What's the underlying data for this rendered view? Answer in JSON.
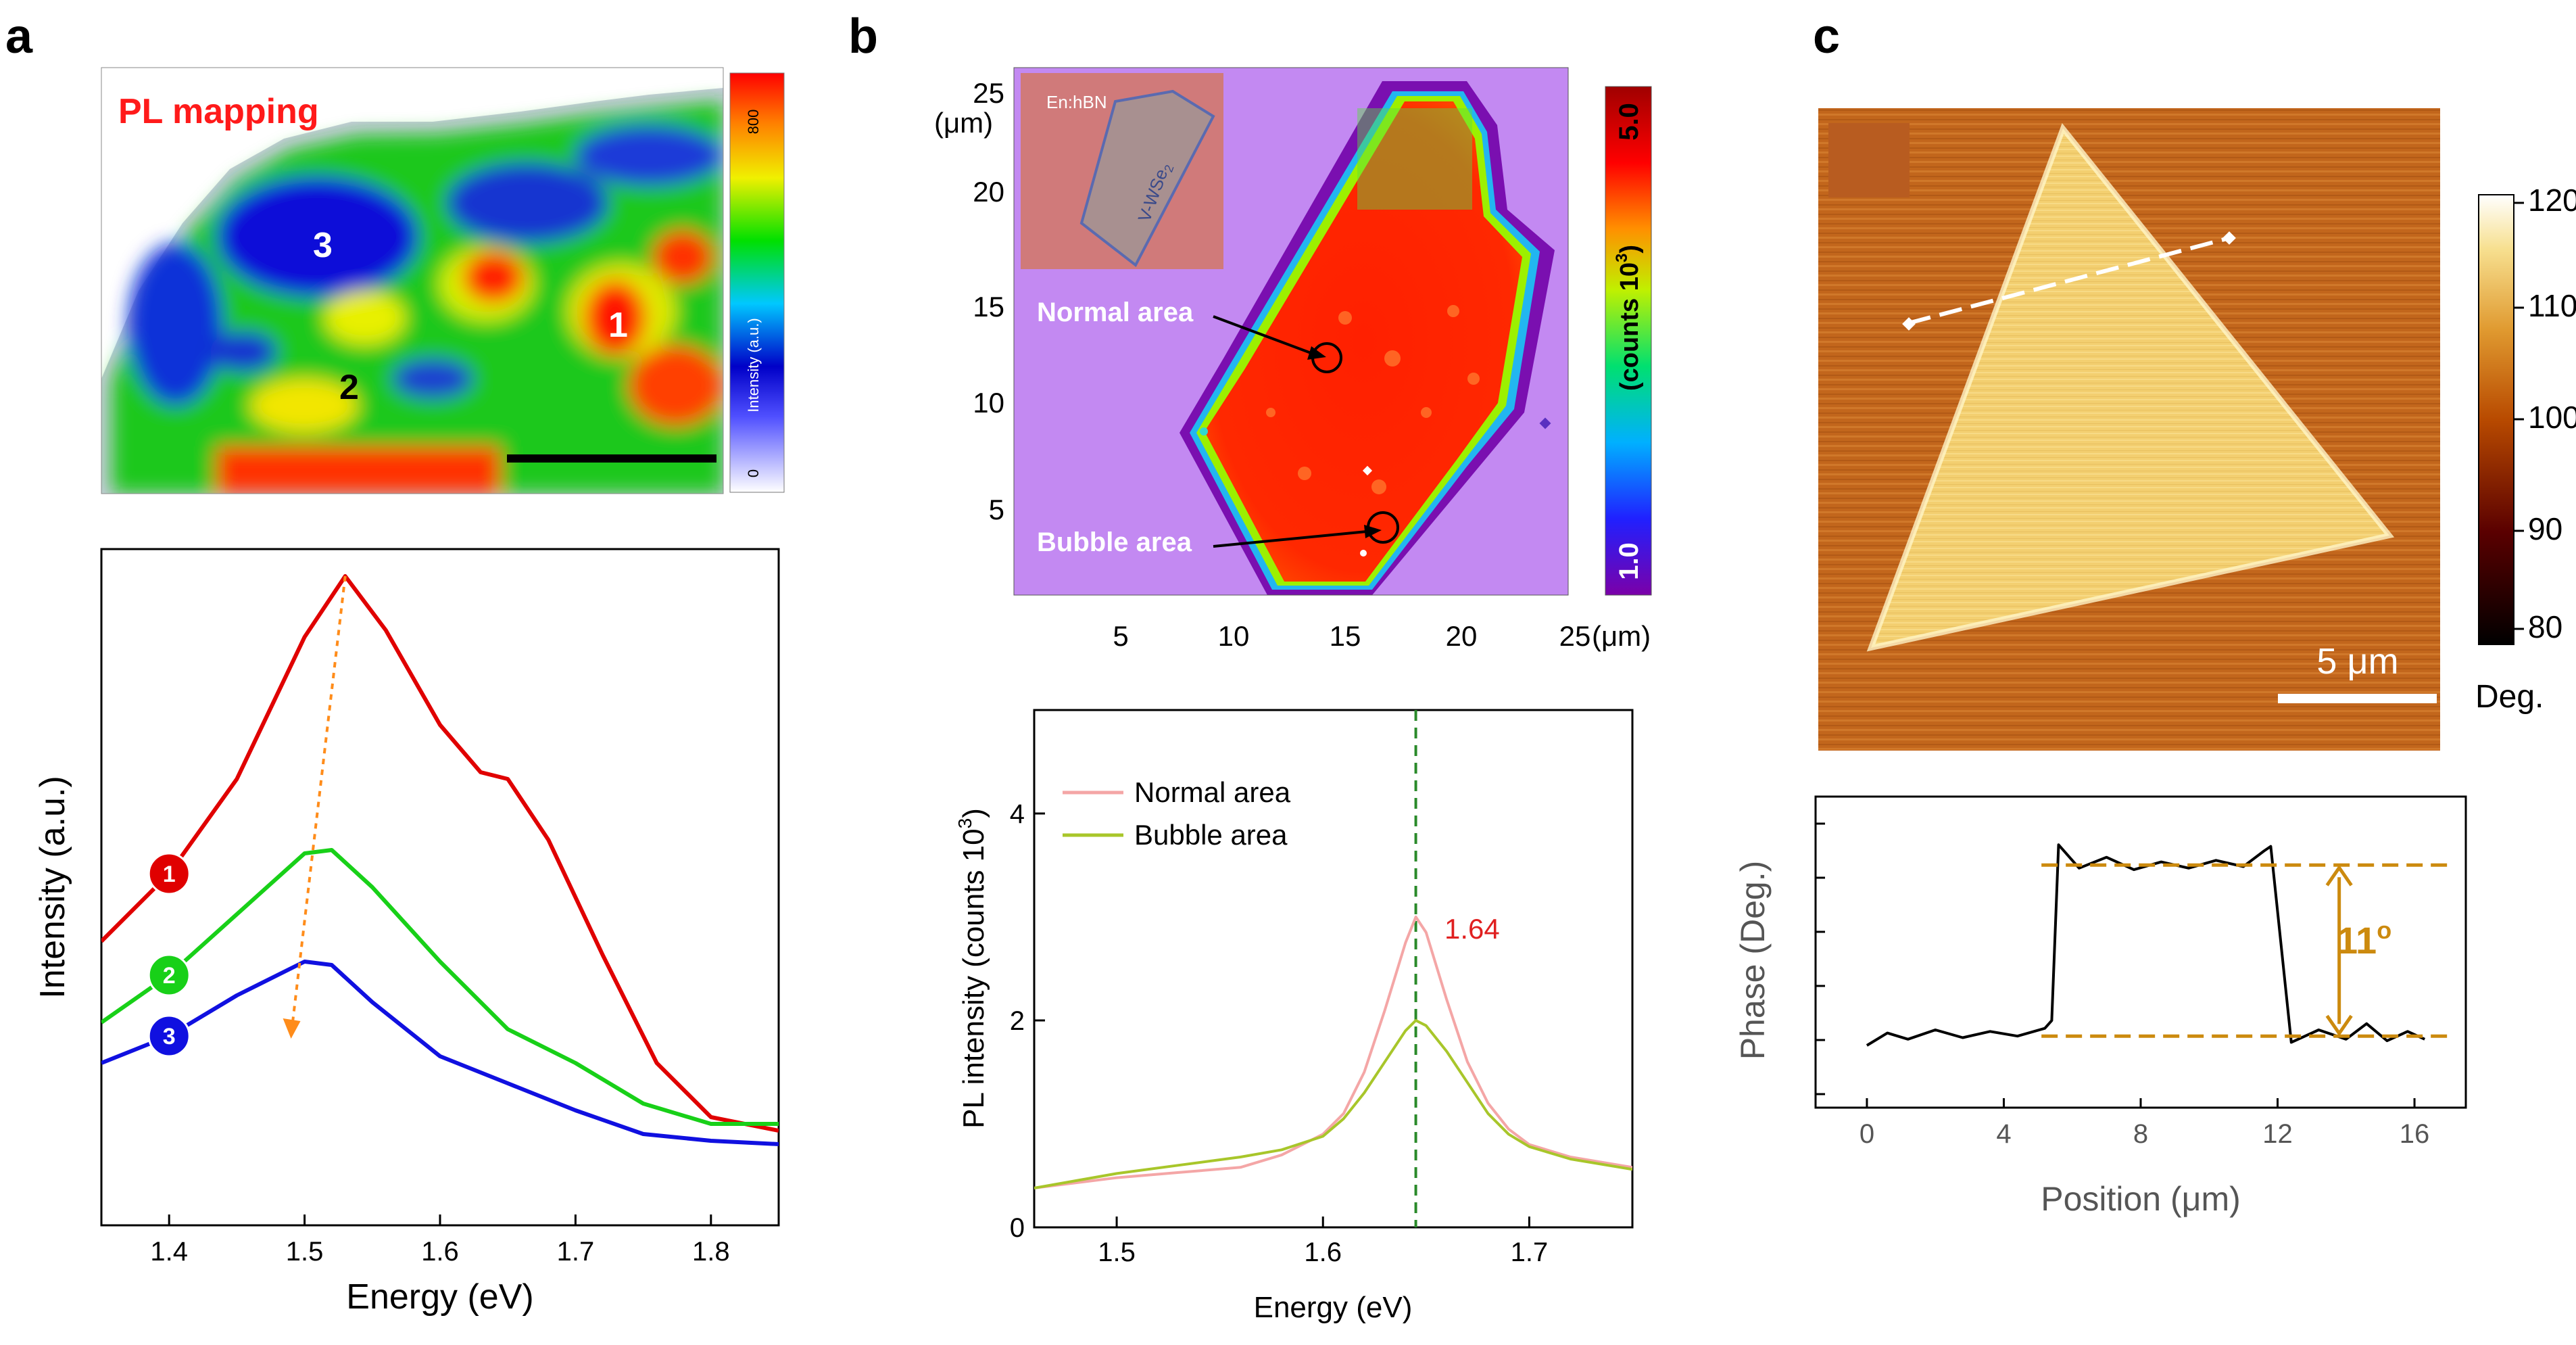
{
  "panels": {
    "a": {
      "letter": "a",
      "map": {
        "title": "PL mapping",
        "region_labels": [
          "1",
          "2",
          "3"
        ],
        "colorbar": {
          "max_label": "800",
          "min_label": "0",
          "label": "Intensity (a.u.)"
        }
      },
      "spectra": {
        "type": "line",
        "xlabel": "Energy (eV)",
        "ylabel": "Intensity (a.u.)",
        "xlim": [
          1.35,
          1.85
        ],
        "ylim": [
          0,
          1.0
        ],
        "xticks": [
          "1.4",
          "1.5",
          "1.6",
          "1.7",
          "1.8"
        ],
        "series": [
          {
            "name": "1",
            "color": "#e00000",
            "points": [
              [
                1.35,
                0.42
              ],
              [
                1.4,
                0.52
              ],
              [
                1.45,
                0.66
              ],
              [
                1.5,
                0.87
              ],
              [
                1.53,
                0.96
              ],
              [
                1.56,
                0.88
              ],
              [
                1.6,
                0.74
              ],
              [
                1.63,
                0.67
              ],
              [
                1.65,
                0.66
              ],
              [
                1.68,
                0.57
              ],
              [
                1.72,
                0.4
              ],
              [
                1.76,
                0.24
              ],
              [
                1.8,
                0.16
              ],
              [
                1.85,
                0.14
              ]
            ]
          },
          {
            "name": "2",
            "color": "#18d018",
            "points": [
              [
                1.35,
                0.3
              ],
              [
                1.4,
                0.37
              ],
              [
                1.45,
                0.46
              ],
              [
                1.5,
                0.55
              ],
              [
                1.52,
                0.555
              ],
              [
                1.55,
                0.5
              ],
              [
                1.6,
                0.39
              ],
              [
                1.65,
                0.29
              ],
              [
                1.7,
                0.24
              ],
              [
                1.75,
                0.18
              ],
              [
                1.8,
                0.15
              ],
              [
                1.85,
                0.15
              ]
            ]
          },
          {
            "name": "3",
            "color": "#1010e0",
            "points": [
              [
                1.35,
                0.24
              ],
              [
                1.4,
                0.28
              ],
              [
                1.45,
                0.34
              ],
              [
                1.5,
                0.39
              ],
              [
                1.52,
                0.385
              ],
              [
                1.55,
                0.33
              ],
              [
                1.6,
                0.25
              ],
              [
                1.65,
                0.21
              ],
              [
                1.7,
                0.17
              ],
              [
                1.75,
                0.135
              ],
              [
                1.8,
                0.125
              ],
              [
                1.85,
                0.12
              ]
            ]
          }
        ],
        "shift_arrow": {
          "from": [
            1.53,
            0.96
          ],
          "to": [
            1.49,
            0.28
          ]
        }
      }
    },
    "b": {
      "letter": "b",
      "map": {
        "x_unit": "(μm)",
        "y_unit": "(μm)",
        "xticks": [
          "5",
          "10",
          "15",
          "20",
          "25"
        ],
        "yticks": [
          "5",
          "10",
          "15",
          "20",
          "25"
        ],
        "inset_label": "En:hBN",
        "flake_label": "V-WSe",
        "flake_label_sub": "2",
        "annotations": [
          "Normal area",
          "Bubble area"
        ],
        "colorbar": {
          "max_label": "5.0",
          "min_label": "1.0",
          "label": "(counts 10",
          "label_sup": "3",
          "label_end": ")"
        }
      },
      "spectra": {
        "type": "line",
        "xlabel": "Energy (eV)",
        "ylabel": "PL intensity (counts 10",
        "ylabel_sup": "3",
        "ylabel_end": ")",
        "xlim": [
          1.46,
          1.75
        ],
        "ylim": [
          0,
          5
        ],
        "xticks": [
          "1.5",
          "1.6",
          "1.7"
        ],
        "yticks": [
          "0",
          "2",
          "4"
        ],
        "peak_label": "1.64",
        "peak_line": 1.645,
        "series": [
          {
            "name": "Normal area",
            "color": "#f4a6a6",
            "points": [
              [
                1.46,
                0.38
              ],
              [
                1.5,
                0.48
              ],
              [
                1.53,
                0.53
              ],
              [
                1.56,
                0.58
              ],
              [
                1.58,
                0.7
              ],
              [
                1.6,
                0.9
              ],
              [
                1.61,
                1.1
              ],
              [
                1.62,
                1.5
              ],
              [
                1.63,
                2.1
              ],
              [
                1.64,
                2.75
              ],
              [
                1.645,
                3.0
              ],
              [
                1.65,
                2.85
              ],
              [
                1.66,
                2.2
              ],
              [
                1.67,
                1.6
              ],
              [
                1.68,
                1.2
              ],
              [
                1.69,
                0.95
              ],
              [
                1.7,
                0.8
              ],
              [
                1.72,
                0.68
              ],
              [
                1.75,
                0.58
              ]
            ]
          },
          {
            "name": "Bubble area",
            "color": "#a8c62a",
            "points": [
              [
                1.46,
                0.38
              ],
              [
                1.5,
                0.52
              ],
              [
                1.53,
                0.6
              ],
              [
                1.56,
                0.68
              ],
              [
                1.58,
                0.75
              ],
              [
                1.6,
                0.88
              ],
              [
                1.61,
                1.05
              ],
              [
                1.62,
                1.3
              ],
              [
                1.63,
                1.6
              ],
              [
                1.64,
                1.9
              ],
              [
                1.645,
                2.0
              ],
              [
                1.65,
                1.95
              ],
              [
                1.66,
                1.7
              ],
              [
                1.67,
                1.4
              ],
              [
                1.68,
                1.1
              ],
              [
                1.69,
                0.9
              ],
              [
                1.7,
                0.78
              ],
              [
                1.72,
                0.66
              ],
              [
                1.75,
                0.56
              ]
            ]
          }
        ]
      }
    },
    "c": {
      "letter": "c",
      "map": {
        "scale_label": "5 μm",
        "colorbar": {
          "ticks": [
            "120",
            "110",
            "100",
            "90",
            "80"
          ],
          "unit": "Deg."
        }
      },
      "profile": {
        "type": "line",
        "xlabel": "Position (μm)",
        "ylabel": "Phase (Deg.)",
        "xlim": [
          -1.5,
          17.5
        ],
        "ylim": [
          80,
          100
        ],
        "xticks": [
          "0",
          "4",
          "8",
          "12",
          "16"
        ],
        "step_label": "11",
        "step_label_sup": "o",
        "low_level": 84.6,
        "high_level": 95.6,
        "series": [
          {
            "name": "phase profile",
            "color": "#000000",
            "points": [
              [
                0,
                84.0
              ],
              [
                0.6,
                84.8
              ],
              [
                1.2,
                84.4
              ],
              [
                2.0,
                85.0
              ],
              [
                2.8,
                84.5
              ],
              [
                3.6,
                84.9
              ],
              [
                4.4,
                84.6
              ],
              [
                5.2,
                85.1
              ],
              [
                5.4,
                85.6
              ],
              [
                5.6,
                96.9
              ],
              [
                6.2,
                95.4
              ],
              [
                7.0,
                96.1
              ],
              [
                7.8,
                95.3
              ],
              [
                8.6,
                95.8
              ],
              [
                9.4,
                95.4
              ],
              [
                10.2,
                95.9
              ],
              [
                11.0,
                95.5
              ],
              [
                11.6,
                96.5
              ],
              [
                11.8,
                96.8
              ],
              [
                12.4,
                84.2
              ],
              [
                13.2,
                85.0
              ],
              [
                14.0,
                84.4
              ],
              [
                14.6,
                85.4
              ],
              [
                15.2,
                84.3
              ],
              [
                15.8,
                84.9
              ],
              [
                16.3,
                84.4
              ]
            ]
          }
        ]
      }
    }
  }
}
